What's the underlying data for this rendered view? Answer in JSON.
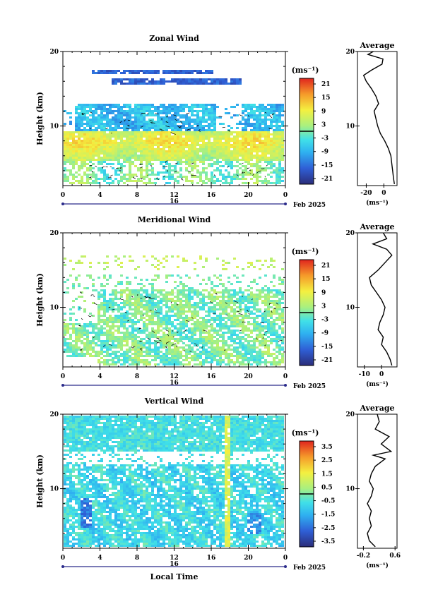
{
  "chart_data": [
    {
      "type": "heatmap",
      "title": "Zonal Wind",
      "xlabel": "",
      "ylabel": "Height (km)",
      "y_ticks": [
        "10",
        "20"
      ],
      "y_range": [
        2,
        20
      ],
      "x_ticks": [
        "0",
        "4",
        "8",
        "12",
        "16",
        "20",
        "0"
      ],
      "x_range_hours": [
        0,
        24
      ],
      "date_label": "16",
      "month_label": "Feb 2025",
      "colorbar": {
        "unit": "(ms⁻¹)",
        "ticks": [
          "21",
          "15",
          "9",
          "3",
          "-3",
          "-9",
          "-15",
          "-21"
        ],
        "range": [
          -24,
          24
        ]
      },
      "average": {
        "title": "Average",
        "xlabel": "(ms⁻¹)",
        "x_ticks": [
          "-20",
          "0"
        ],
        "y_ticks": [
          "10",
          "20"
        ],
        "profile": [
          {
            "h": 2.2,
            "v": 12
          },
          {
            "h": 3,
            "v": 11
          },
          {
            "h": 4,
            "v": 10
          },
          {
            "h": 5,
            "v": 9
          },
          {
            "h": 6,
            "v": 8
          },
          {
            "h": 7,
            "v": 5
          },
          {
            "h": 8,
            "v": 1
          },
          {
            "h": 9,
            "v": -4
          },
          {
            "h": 10,
            "v": -7
          },
          {
            "h": 11,
            "v": -9
          },
          {
            "h": 12,
            "v": -11
          },
          {
            "h": 13,
            "v": -6
          },
          {
            "h": 14,
            "v": -9
          },
          {
            "h": 15,
            "v": -14
          },
          {
            "h": 16,
            "v": -20
          },
          {
            "h": 16.8,
            "v": -23
          },
          {
            "h": 17.5,
            "v": -14
          },
          {
            "h": 18.3,
            "v": -2
          },
          {
            "h": 19,
            "v": -1
          },
          {
            "h": 19.6,
            "v": -18
          },
          {
            "h": 20,
            "v": -12
          }
        ]
      }
    },
    {
      "type": "heatmap",
      "title": "Meridional Wind",
      "xlabel": "",
      "ylabel": "Height (km)",
      "y_ticks": [
        "10",
        "20"
      ],
      "y_range": [
        2,
        20
      ],
      "x_ticks": [
        "0",
        "4",
        "8",
        "12",
        "16",
        "20",
        "0"
      ],
      "x_range_hours": [
        0,
        24
      ],
      "date_label": "16",
      "month_label": "Feb 2025",
      "colorbar": {
        "unit": "(ms⁻¹)",
        "ticks": [
          "21",
          "15",
          "9",
          "3",
          "-3",
          "-9",
          "-15",
          "-21"
        ],
        "range": [
          -24,
          24
        ]
      },
      "average": {
        "title": "Average",
        "xlabel": "(ms⁻¹)",
        "x_ticks": [
          "-10",
          "0"
        ],
        "y_ticks": [
          "10",
          "20"
        ],
        "profile": [
          {
            "h": 2.2,
            "v": 6
          },
          {
            "h": 3,
            "v": 5
          },
          {
            "h": 4,
            "v": 3
          },
          {
            "h": 5,
            "v": 0
          },
          {
            "h": 6,
            "v": 1
          },
          {
            "h": 7,
            "v": -2
          },
          {
            "h": 8,
            "v": -1
          },
          {
            "h": 9,
            "v": 1
          },
          {
            "h": 10,
            "v": 2
          },
          {
            "h": 11,
            "v": 0
          },
          {
            "h": 12,
            "v": -3
          },
          {
            "h": 13,
            "v": -6
          },
          {
            "h": 14,
            "v": -7
          },
          {
            "h": 15,
            "v": -2
          },
          {
            "h": 16,
            "v": 2
          },
          {
            "h": 17,
            "v": 6
          },
          {
            "h": 17.8,
            "v": 3
          },
          {
            "h": 18.5,
            "v": -5
          },
          {
            "h": 19.2,
            "v": 3
          },
          {
            "h": 20,
            "v": 1
          }
        ]
      }
    },
    {
      "type": "heatmap",
      "title": "Vertical Wind",
      "xlabel": "Local Time",
      "ylabel": "Height (km)",
      "y_ticks": [
        "10",
        "20"
      ],
      "y_range": [
        2,
        20
      ],
      "x_ticks": [
        "0",
        "4",
        "8",
        "12",
        "16",
        "20",
        "0"
      ],
      "x_range_hours": [
        0,
        24
      ],
      "date_label": "16",
      "month_label": "Feb 2025",
      "colorbar": {
        "unit": "(ms⁻¹)",
        "ticks": [
          "3.5",
          "2.5",
          "1.5",
          "0.5",
          "-0.5",
          "-1.5",
          "-2.5",
          "-3.5"
        ],
        "range": [
          -4,
          4
        ]
      },
      "average": {
        "title": "Average",
        "xlabel": "(ms⁻¹)",
        "x_ticks": [
          "-0.2",
          "0.6"
        ],
        "y_ticks": [
          "10",
          "20"
        ],
        "profile": [
          {
            "h": 2.2,
            "v": 0.1
          },
          {
            "h": 3,
            "v": -0.05
          },
          {
            "h": 4,
            "v": -0.1
          },
          {
            "h": 5,
            "v": 0.0
          },
          {
            "h": 6,
            "v": -0.05
          },
          {
            "h": 7,
            "v": 0.0
          },
          {
            "h": 8,
            "v": -0.1
          },
          {
            "h": 9,
            "v": 0.0
          },
          {
            "h": 10,
            "v": 0.05
          },
          {
            "h": 11,
            "v": -0.05
          },
          {
            "h": 12,
            "v": 0.0
          },
          {
            "h": 13,
            "v": 0.1
          },
          {
            "h": 14,
            "v": 0.35
          },
          {
            "h": 14.5,
            "v": 0.05
          },
          {
            "h": 15,
            "v": 0.5
          },
          {
            "h": 16,
            "v": 0.25
          },
          {
            "h": 17,
            "v": 0.45
          },
          {
            "h": 18,
            "v": 0.1
          },
          {
            "h": 19,
            "v": 0.2
          },
          {
            "h": 20,
            "v": 0.15
          }
        ]
      }
    }
  ]
}
